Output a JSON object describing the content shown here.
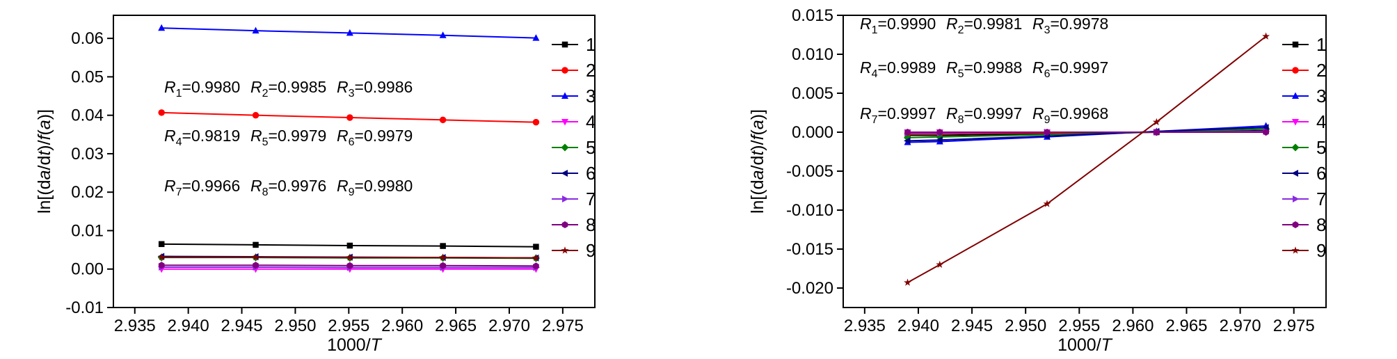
{
  "chart_data": [
    {
      "type": "line",
      "title": "",
      "xlabel": "1000/T",
      "ylabel": "ln[(da/dt)/f(a)]",
      "xlim": [
        2.933,
        2.978
      ],
      "ylim": [
        -0.01,
        0.066
      ],
      "xticks": [
        2.935,
        2.94,
        2.945,
        2.95,
        2.955,
        2.96,
        2.965,
        2.97,
        2.975
      ],
      "xtick_labels": [
        "2.935",
        "2.940",
        "2.945",
        "2.950",
        "2.955",
        "2.960",
        "2.965",
        "2.970",
        "2.975"
      ],
      "yticks": [
        -0.01,
        0.0,
        0.01,
        0.02,
        0.03,
        0.04,
        0.05,
        0.06
      ],
      "ytick_labels": [
        "-0.01",
        "0.00",
        "0.01",
        "0.02",
        "0.03",
        "0.04",
        "0.05",
        "0.06"
      ],
      "legend": "right",
      "x": [
        2.9375,
        2.9463,
        2.9551,
        2.9638,
        2.9725
      ],
      "series": [
        {
          "name": "1",
          "color": "#000000",
          "marker": "square",
          "values": [
            0.0065,
            0.0063,
            0.0061,
            0.006,
            0.0058
          ]
        },
        {
          "name": "2",
          "color": "#ff0000",
          "marker": "circle",
          "values": [
            0.0407,
            0.04,
            0.0394,
            0.0388,
            0.0382
          ]
        },
        {
          "name": "3",
          "color": "#0000ff",
          "marker": "triangle-up",
          "values": [
            0.0627,
            0.062,
            0.0614,
            0.0608,
            0.0601
          ]
        },
        {
          "name": "4",
          "color": "#ff00ff",
          "marker": "triangle-down",
          "values": [
            0.0,
            0.0,
            0.0,
            0.0,
            0.0
          ]
        },
        {
          "name": "5",
          "color": "#008000",
          "marker": "diamond",
          "values": [
            0.003,
            0.003,
            0.0029,
            0.0029,
            0.0028
          ]
        },
        {
          "name": "6",
          "color": "#000080",
          "marker": "triangle-left",
          "values": [
            0.0033,
            0.0032,
            0.0031,
            0.003,
            0.0029
          ]
        },
        {
          "name": "7",
          "color": "#8a2be2",
          "marker": "triangle-right",
          "values": [
            0.0005,
            0.0005,
            0.0004,
            0.0004,
            0.0004
          ]
        },
        {
          "name": "8",
          "color": "#800080",
          "marker": "hexagon",
          "values": [
            0.001,
            0.001,
            0.0009,
            0.0009,
            0.0008
          ]
        },
        {
          "name": "9",
          "color": "#800000",
          "marker": "star",
          "values": [
            0.0031,
            0.0031,
            0.003,
            0.003,
            0.0029
          ]
        }
      ],
      "annotations": [
        [
          {
            "label": "R",
            "sub": "1",
            "value": "=0.9980"
          },
          {
            "label": "R",
            "sub": "2",
            "value": "=0.9985"
          },
          {
            "label": "R",
            "sub": "3",
            "value": "=0.9986"
          }
        ],
        [
          {
            "label": "R",
            "sub": "4",
            "value": "=0.9819"
          },
          {
            "label": "R",
            "sub": "5",
            "value": "=0.9979"
          },
          {
            "label": "R",
            "sub": "6",
            "value": "=0.9979"
          }
        ],
        [
          {
            "label": "R",
            "sub": "7",
            "value": "=0.9966"
          },
          {
            "label": "R",
            "sub": "8",
            "value": "=0.9976"
          },
          {
            "label": "R",
            "sub": "9",
            "value": "=0.9980"
          }
        ]
      ]
    },
    {
      "type": "line",
      "title": "",
      "xlabel": "1000/T",
      "ylabel": "ln[(da/dt)/f(a)]",
      "xlim": [
        2.933,
        2.978
      ],
      "ylim": [
        -0.0225,
        0.015
      ],
      "xticks": [
        2.935,
        2.94,
        2.945,
        2.95,
        2.955,
        2.96,
        2.965,
        2.97,
        2.975
      ],
      "xtick_labels": [
        "2.935",
        "2.940",
        "2.945",
        "2.950",
        "2.955",
        "2.960",
        "2.965",
        "2.970",
        "2.975"
      ],
      "yticks": [
        -0.02,
        -0.015,
        -0.01,
        -0.005,
        0.0,
        0.005,
        0.01,
        0.015
      ],
      "ytick_labels": [
        "-0.020",
        "-0.015",
        "-0.010",
        "-0.005",
        "0.000",
        "0.005",
        "0.010",
        "0.015"
      ],
      "legend": "right",
      "x": [
        2.939,
        2.942,
        2.952,
        2.9622,
        2.9724
      ],
      "series": [
        {
          "name": "1",
          "color": "#000000",
          "marker": "square",
          "values": [
            -0.0004,
            -0.0004,
            -0.0002,
            0.0,
            0.0002
          ]
        },
        {
          "name": "2",
          "color": "#ff0000",
          "marker": "circle",
          "values": [
            -0.0002,
            -0.0002,
            -0.0001,
            0.0,
            0.0001
          ]
        },
        {
          "name": "3",
          "color": "#0000ff",
          "marker": "triangle-up",
          "values": [
            -0.0013,
            -0.0012,
            -0.0006,
            0.0001,
            0.0008
          ]
        },
        {
          "name": "4",
          "color": "#ff00ff",
          "marker": "triangle-down",
          "values": [
            0.0,
            0.0,
            0.0,
            0.0,
            0.0
          ]
        },
        {
          "name": "5",
          "color": "#008000",
          "marker": "diamond",
          "values": [
            -0.0007,
            -0.0006,
            -0.0003,
            0.0,
            0.0004
          ]
        },
        {
          "name": "6",
          "color": "#000080",
          "marker": "triangle-left",
          "values": [
            -0.0011,
            -0.001,
            -0.0005,
            0.0001,
            0.0006
          ]
        },
        {
          "name": "7",
          "color": "#8a2be2",
          "marker": "triangle-right",
          "values": [
            -0.0001,
            -0.0001,
            0.0,
            0.0,
            0.0001
          ]
        },
        {
          "name": "8",
          "color": "#800080",
          "marker": "hexagon",
          "values": [
            0.0,
            0.0,
            0.0,
            0.0,
            0.0
          ]
        },
        {
          "name": "9",
          "color": "#800000",
          "marker": "star",
          "values": [
            -0.0193,
            -0.017,
            -0.0092,
            0.0013,
            0.0123
          ]
        }
      ],
      "annotations": [
        [
          {
            "label": "R",
            "sub": "1",
            "value": "=0.9990"
          },
          {
            "label": "R",
            "sub": "2",
            "value": "=0.9981"
          },
          {
            "label": "R",
            "sub": "3",
            "value": "=0.9978"
          }
        ],
        [
          {
            "label": "R",
            "sub": "4",
            "value": "=0.9989"
          },
          {
            "label": "R",
            "sub": "5",
            "value": "=0.9988"
          },
          {
            "label": "R",
            "sub": "6",
            "value": "=0.9997"
          }
        ],
        [
          {
            "label": "R",
            "sub": "7",
            "value": "=0.9997"
          },
          {
            "label": "R",
            "sub": "8",
            "value": "=0.9997"
          },
          {
            "label": "R",
            "sub": "9",
            "value": "=0.9968"
          }
        ]
      ]
    }
  ]
}
